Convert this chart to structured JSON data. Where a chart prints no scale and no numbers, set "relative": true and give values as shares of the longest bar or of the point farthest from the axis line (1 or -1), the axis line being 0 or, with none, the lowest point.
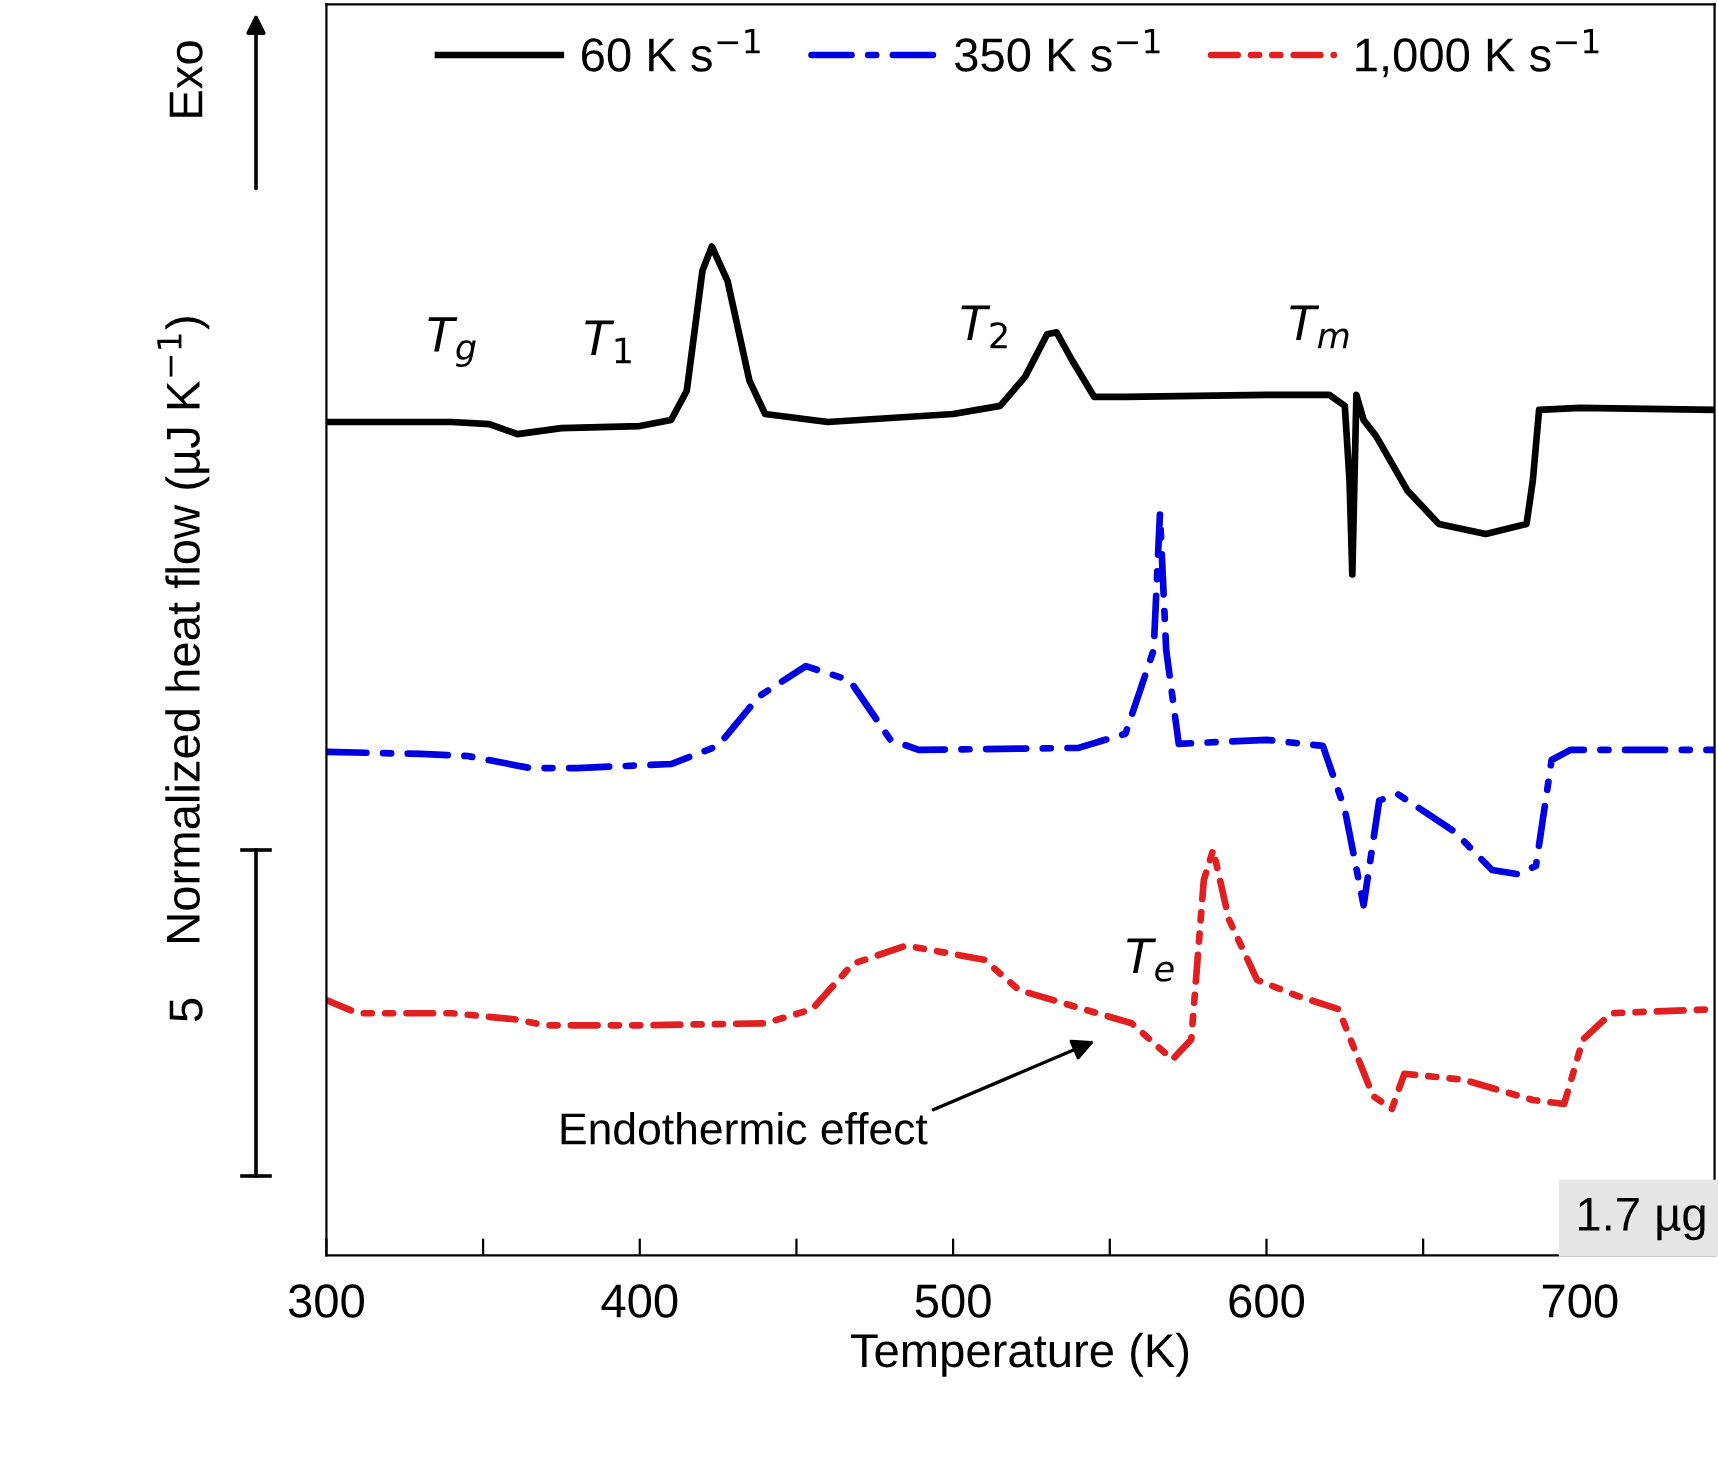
{
  "chart_data": {
    "type": "line",
    "relative": true,
    "xlabel": "Temperature (K)",
    "ylabel": "Normalized heat flow (µJ K$^{−1}$)",
    "xlim": [
      300,
      743
    ],
    "xticks": [
      300,
      {
        "value": 350,
        "label": null
      },
      400,
      {
        "value": 450,
        "label": null
      },
      500,
      {
        "value": 550,
        "label": null
      },
      600,
      {
        "value": 650,
        "label": null
      },
      700
    ],
    "tick_labels": "x",
    "grid": false,
    "legend": "top",
    "marker": "none",
    "series": [
      {
        "name": "60 K s$^{−1}$",
        "color": "#000000",
        "line_style": "solid",
        "x": [
          300,
          340,
          352,
          361,
          375,
          400,
          410,
          415,
          420,
          423,
          428,
          435,
          440,
          460,
          500,
          515,
          523,
          530,
          533,
          538,
          545,
          555,
          600,
          620,
          625,
          626.5,
          627.4,
          628.7,
          631,
          635,
          645,
          655,
          670,
          683,
          685,
          687,
          700,
          743
        ],
        "values": [
          0.826,
          0.826,
          0.824,
          0.814,
          0.82,
          0.822,
          0.828,
          0.857,
          0.976,
          1.0,
          0.966,
          0.867,
          0.834,
          0.826,
          0.834,
          0.842,
          0.871,
          0.913,
          0.915,
          0.887,
          0.851,
          0.851,
          0.853,
          0.853,
          0.842,
          0.768,
          0.675,
          0.853,
          0.828,
          0.812,
          0.758,
          0.725,
          0.715,
          0.725,
          0.768,
          0.838,
          0.84,
          0.838
        ]
      },
      {
        "name": "350 K s$^{−1}$",
        "color": "#0000e0",
        "line_style": "dashdot",
        "x": [
          300,
          330,
          345,
          365,
          380,
          410,
          425,
          438,
          453,
          467,
          480,
          489,
          540,
          555,
          564,
          566,
          568,
          572,
          600,
          618,
          625,
          631,
          636,
          642,
          660,
          672,
          680,
          686,
          691,
          697,
          743
        ],
        "values": [
          0.499,
          0.497,
          0.495,
          0.483,
          0.483,
          0.487,
          0.505,
          0.554,
          0.584,
          0.57,
          0.511,
          0.501,
          0.503,
          0.517,
          0.6,
          0.735,
          0.6,
          0.507,
          0.511,
          0.505,
          0.442,
          0.347,
          0.451,
          0.457,
          0.42,
          0.382,
          0.378,
          0.386,
          0.491,
          0.501,
          0.501
        ]
      },
      {
        "name": "1,000 K s$^{−1}$",
        "color": "#e02020",
        "line_style": "dashdotdot",
        "x": [
          300,
          310,
          340,
          360,
          370,
          400,
          440,
          455,
          468,
          485,
          510,
          521,
          546,
          557,
          570,
          576,
          580,
          583,
          588,
          597,
          610,
          623,
          634,
          640,
          644,
          663,
          685,
          695,
          701,
          710,
          743
        ],
        "values": [
          0.253,
          0.24,
          0.24,
          0.234,
          0.228,
          0.228,
          0.23,
          0.244,
          0.289,
          0.307,
          0.293,
          0.263,
          0.24,
          0.23,
          0.194,
          0.214,
          0.372,
          0.402,
          0.333,
          0.273,
          0.257,
          0.244,
          0.158,
          0.145,
          0.18,
          0.174,
          0.154,
          0.15,
          0.214,
          0.24,
          0.244
        ]
      }
    ],
    "annotations": [
      "T$_{g}$",
      "T$_{1}$",
      "T$_{2}$",
      "T$_{m}$",
      "T$_{e}$",
      "Endothermic effect",
      "1.7 µg",
      "5",
      "Exo"
    ]
  }
}
